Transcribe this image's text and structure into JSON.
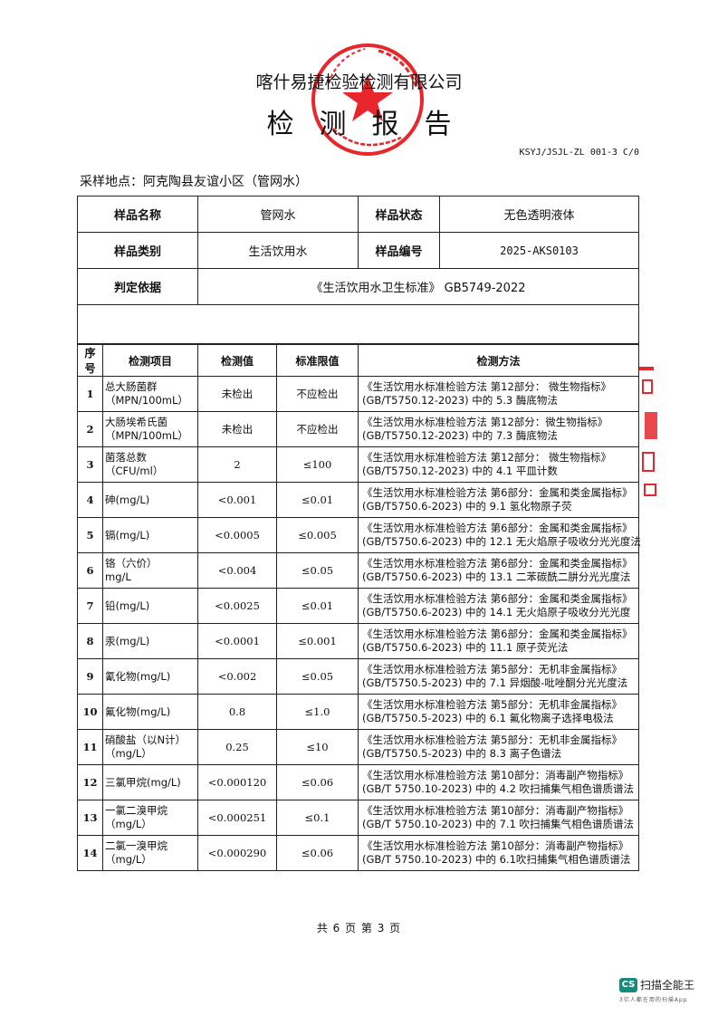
{
  "header": {
    "company": "喀什易捷检验检测有限公司",
    "title": "检测报告",
    "doc_number": "KSYJ/JSJL-ZL 001-3 C/0",
    "sampling_location": "采样地点：阿克陶县友谊小区（管网水）"
  },
  "info": {
    "sample_name_label": "样品名称",
    "sample_name": "管网水",
    "sample_state_label": "样品状态",
    "sample_state": "无色透明液体",
    "sample_category_label": "样品类别",
    "sample_category": "生活饮用水",
    "sample_id_label": "样品编号",
    "sample_id": "2025-AKS0103",
    "basis_label": "判定依据",
    "basis": "《生活饮用水卫生标准》 GB5749-2022"
  },
  "table": {
    "headers": [
      "序号",
      "检测项目",
      "检测值",
      "标准限值",
      "检测方法"
    ],
    "rows": [
      {
        "no": "1",
        "item": "总大肠菌群",
        "unit": "（MPN/100mL）",
        "value": "未检出",
        "limit": "不应检出",
        "method1": "《生活饮用水标准检验方法 第12部分： 微生物指标》",
        "method2": "(GB/T5750.12-2023) 中的 5.3 酶底物法"
      },
      {
        "no": "2",
        "item": "大肠埃希氏菌",
        "unit": "（MPN/100mL）",
        "value": "未检出",
        "limit": "不应检出",
        "method1": "《生活饮用水标准检验方法  第12部分：微生物指标》",
        "method2": "(GB/T5750.12-2023) 中的 7.3 酶底物法"
      },
      {
        "no": "3",
        "item": "菌落总数",
        "unit": "（CFU/ml）",
        "value": "2",
        "limit": "≤100",
        "method1": "《生活饮用水标准检验方法  第12部分： 微生物指标》",
        "method2": "(GB/T5750.12-2023) 中的 4.1 平皿计数"
      },
      {
        "no": "4",
        "item": "砷(mg/L)",
        "unit": "",
        "value": "<0.001",
        "limit": "≤0.01",
        "method1": "《生活饮用水标准检验方法 第6部分：金属和类金属指标》",
        "method2": "(GB/T5750.6-2023) 中的 9.1  氢化物原子荧"
      },
      {
        "no": "5",
        "item": "镉(mg/L)",
        "unit": "",
        "value": "<0.0005",
        "limit": "≤0.005",
        "method1": "《生活饮用水标准检验方法 第6部分：金属和类金属指标》",
        "method2": "(GB/T5750.6-2023) 中的 12.1 无火焰原子吸收分光光度法"
      },
      {
        "no": "6",
        "item": "铬（六价）",
        "unit": "mg/L",
        "value": "<0.004",
        "limit": "≤0.05",
        "method1": "《生活饮用水标准检验方法  第6部分：金属和类金属指标》",
        "method2": "(GB/T5750.6-2023) 中的 13.1  二苯碳酰二肼分光光度法"
      },
      {
        "no": "7",
        "item": "铅(mg/L)",
        "unit": "",
        "value": "<0.0025",
        "limit": "≤0.01",
        "method1": "《生活饮用水标准检验方法  第6部分：金属和类金属指标》",
        "method2": "(GB/T5750.6-2023) 中的 14.1 无火焰原子吸收分光光度"
      },
      {
        "no": "8",
        "item": "汞(mg/L)",
        "unit": "",
        "value": "<0.0001",
        "limit": "≤0.001",
        "method1": "《生活饮用水标准检验方法  第6部分：金属和类金属指标》",
        "method2": "(GB/T5750.6-2023) 中的 11.1 原子荧光法"
      },
      {
        "no": "9",
        "item": "氰化物(mg/L)",
        "unit": "",
        "value": "<0.002",
        "limit": "≤0.05",
        "method1": "《生活饮用水标准检验方法 第5部分：无机非金属指标》",
        "method2": "(GB/T5750.5-2023) 中的 7.1 异烟酸-吡唑酮分光光度法"
      },
      {
        "no": "10",
        "item": "氟化物(mg/L)",
        "unit": "",
        "value": "0.8",
        "limit": "≤1.0",
        "method1": "《生活饮用水标准检验方法 第5部分：无机非金属指标》",
        "method2": "(GB/T5750.5-2023) 中的 6.1 氟化物离子选择电极法"
      },
      {
        "no": "11",
        "item": "硝酸盐（以N计）",
        "unit": "（mg/L）",
        "value": "0.25",
        "limit": "≤10",
        "method1": "《生活饮用水标准检验方法  第5部分：无机非金属指标》",
        "method2": "(GB/T5750.5-2023) 中的 8.3 离子色谱法"
      },
      {
        "no": "12",
        "item": "三氯甲烷(mg/L)",
        "unit": "",
        "value": "<0.000120",
        "limit": "≤0.06",
        "method1": "《生活饮用水标准检验方法  第10部分：消毒副产物指标》",
        "method2": "(GB/T 5750.10-2023) 中的 4.2 吹扫捕集气相色谱质谱法"
      },
      {
        "no": "13",
        "item": "一氯二溴甲烷",
        "unit": "（mg/L）",
        "value": "<0.000251",
        "limit": "≤0.1",
        "method1": "《生活饮用水标准检验方法  第10部分：消毒副产物指标》",
        "method2": "(GB/T 5750.10-2023) 中的 7.1 吹扫捕集气相色谱质谱法"
      },
      {
        "no": "14",
        "item": "二氯一溴甲烷",
        "unit": "（mg/L）",
        "value": "<0.000290",
        "limit": "≤0.06",
        "method1": "《生活饮用水标准检验方法  第10部分：消毒副产物指标》",
        "method2": "(GB/T 5750.10-2023) 中的 6.1吹扫捕集气相色谱质谱法"
      }
    ]
  },
  "footer": {
    "pages": "共 6 页   第 3 页"
  },
  "watermark": {
    "app_name": "扫描全能王",
    "logo_text": "CS",
    "tagline": "3亿人都在用的扫描App",
    "brand_color": "#1a8a7a"
  },
  "stamp": {
    "color": "#e8262b",
    "text": "喀什易捷检验检测有限公司"
  }
}
